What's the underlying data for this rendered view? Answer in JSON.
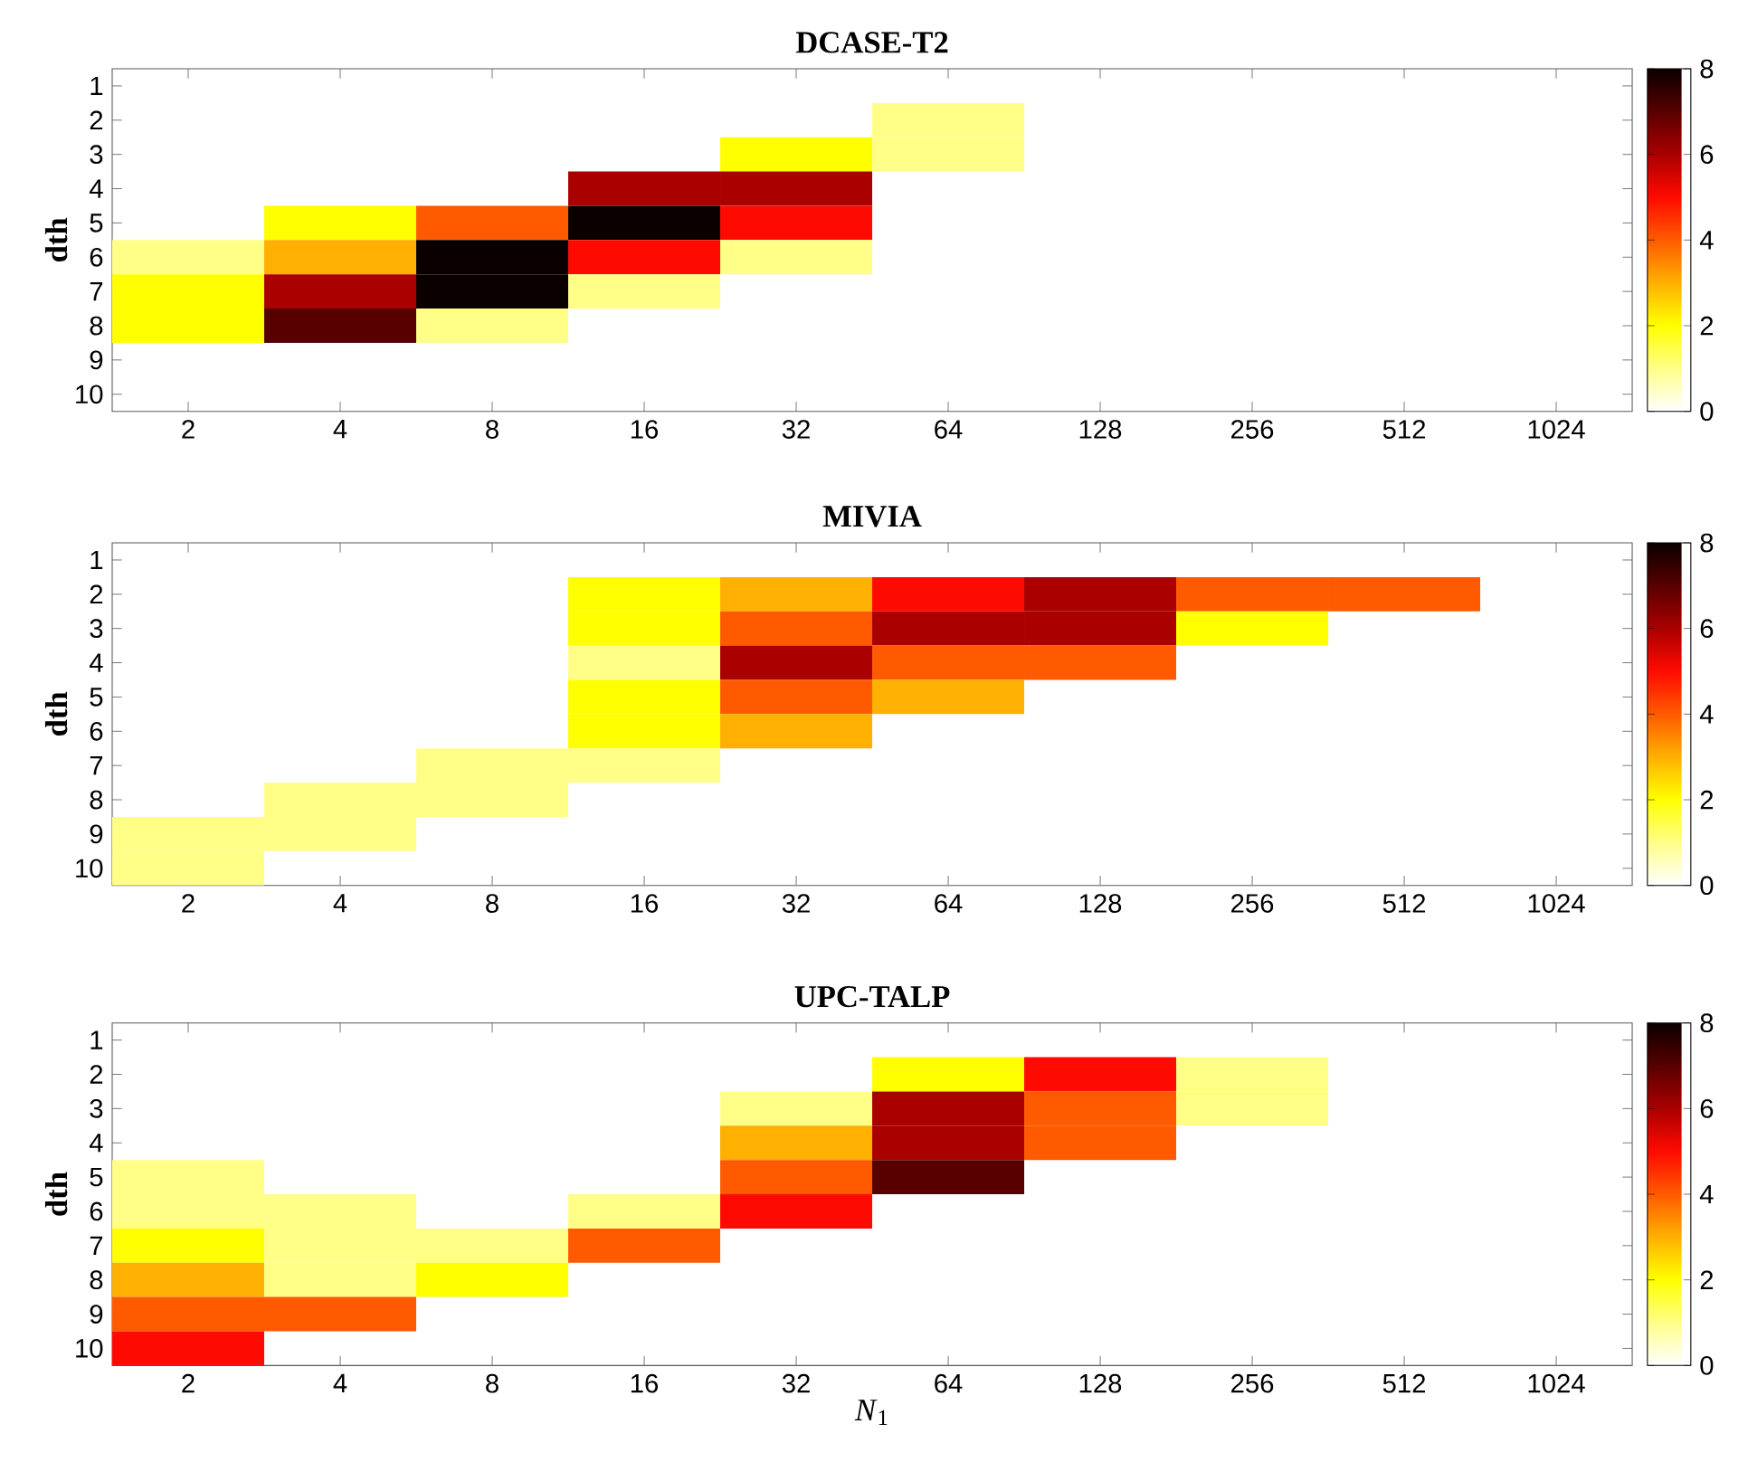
{
  "chart_data": [
    {
      "type": "heatmap",
      "title": "**DCASE-T2**",
      "ylabel": "**dth**",
      "categories": [
        "2",
        "4",
        "8",
        "16",
        "32",
        "64",
        "128",
        "256",
        "512",
        "1024"
      ],
      "y_categories": [
        "1",
        "2",
        "3",
        "4",
        "5",
        "6",
        "7",
        "8",
        "9",
        "10"
      ],
      "cells": [
        [
          null,
          null,
          null,
          null,
          null,
          null,
          null,
          null,
          null,
          null
        ],
        [
          null,
          null,
          null,
          null,
          null,
          1,
          null,
          null,
          null,
          null
        ],
        [
          null,
          null,
          null,
          null,
          2,
          1,
          null,
          null,
          null,
          null
        ],
        [
          null,
          null,
          null,
          6,
          6,
          null,
          null,
          null,
          null,
          null
        ],
        [
          null,
          2,
          4,
          8,
          5,
          null,
          null,
          null,
          null,
          null
        ],
        [
          1,
          3,
          8,
          5,
          1,
          null,
          null,
          null,
          null,
          null
        ],
        [
          2,
          6,
          8,
          1,
          null,
          null,
          null,
          null,
          null,
          null
        ],
        [
          2,
          7,
          1,
          null,
          null,
          null,
          null,
          null,
          null,
          null
        ],
        [
          null,
          null,
          null,
          null,
          null,
          null,
          null,
          null,
          null,
          null
        ],
        [
          null,
          null,
          null,
          null,
          null,
          null,
          null,
          null,
          null,
          null
        ]
      ],
      "clim": [
        0,
        8
      ],
      "cticks": [
        0,
        2,
        4,
        6,
        8
      ]
    },
    {
      "type": "heatmap",
      "title": "**MIVIA**",
      "ylabel": "**dth**",
      "categories": [
        "2",
        "4",
        "8",
        "16",
        "32",
        "64",
        "128",
        "256",
        "512",
        "1024"
      ],
      "y_categories": [
        "1",
        "2",
        "3",
        "4",
        "5",
        "6",
        "7",
        "8",
        "9",
        "10"
      ],
      "cells": [
        [
          null,
          null,
          null,
          null,
          null,
          null,
          null,
          null,
          null,
          null
        ],
        [
          null,
          null,
          null,
          2,
          3,
          5,
          6,
          4,
          4,
          null
        ],
        [
          null,
          null,
          null,
          2,
          4,
          6,
          6,
          2,
          null,
          null
        ],
        [
          null,
          null,
          null,
          1,
          6,
          4,
          4,
          null,
          null,
          null
        ],
        [
          null,
          null,
          null,
          2,
          4,
          3,
          null,
          null,
          null,
          null
        ],
        [
          null,
          null,
          null,
          2,
          3,
          null,
          null,
          null,
          null,
          null
        ],
        [
          null,
          null,
          1,
          1,
          null,
          null,
          null,
          null,
          null,
          null
        ],
        [
          null,
          1,
          1,
          null,
          null,
          null,
          null,
          null,
          null,
          null
        ],
        [
          1,
          1,
          null,
          null,
          null,
          null,
          null,
          null,
          null,
          null
        ],
        [
          1,
          null,
          null,
          null,
          null,
          null,
          null,
          null,
          null,
          null
        ]
      ],
      "clim": [
        0,
        8
      ],
      "cticks": [
        0,
        2,
        4,
        6,
        8
      ]
    },
    {
      "type": "heatmap",
      "title": "**UPC-TALP**",
      "ylabel": "**dth**",
      "xlabel": "*N*$_{1}$",
      "categories": [
        "2",
        "4",
        "8",
        "16",
        "32",
        "64",
        "128",
        "256",
        "512",
        "1024"
      ],
      "y_categories": [
        "1",
        "2",
        "3",
        "4",
        "5",
        "6",
        "7",
        "8",
        "9",
        "10"
      ],
      "cells": [
        [
          null,
          null,
          null,
          null,
          null,
          null,
          null,
          null,
          null,
          null
        ],
        [
          null,
          null,
          null,
          null,
          null,
          2,
          5,
          1,
          null,
          null
        ],
        [
          null,
          null,
          null,
          null,
          1,
          6,
          4,
          1,
          null,
          null
        ],
        [
          null,
          null,
          null,
          null,
          3,
          6,
          4,
          null,
          null,
          null
        ],
        [
          1,
          null,
          null,
          null,
          4,
          7,
          null,
          null,
          null,
          null
        ],
        [
          1,
          1,
          null,
          1,
          5,
          null,
          null,
          null,
          null,
          null
        ],
        [
          2,
          1,
          1,
          4,
          null,
          null,
          null,
          null,
          null,
          null
        ],
        [
          3,
          1,
          2,
          null,
          null,
          null,
          null,
          null,
          null,
          null
        ],
        [
          4,
          4,
          null,
          null,
          null,
          null,
          null,
          null,
          null,
          null
        ],
        [
          5,
          null,
          null,
          null,
          null,
          null,
          null,
          null,
          null,
          null
        ]
      ],
      "clim": [
        0,
        8
      ],
      "cticks": [
        0,
        2,
        4,
        6,
        8
      ]
    }
  ]
}
